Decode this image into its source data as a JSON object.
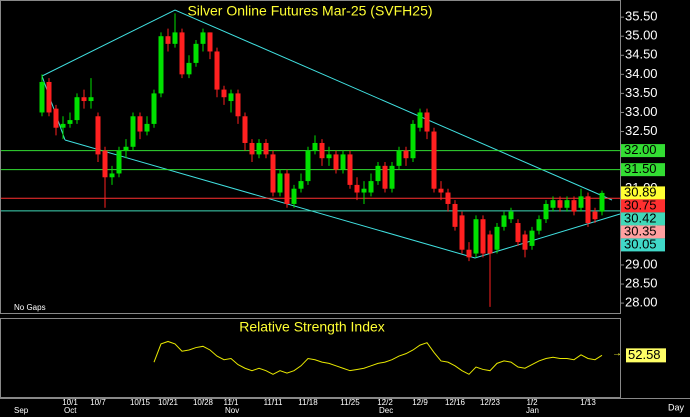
{
  "chart_data": {
    "type": "candlestick",
    "title": "Silver Online Futures Mar-25 (SVFH25)",
    "note": "No Gaps",
    "period_label": "Day",
    "up_color": "#00e000",
    "down_color": "#ff2020",
    "categories": [
      null,
      null,
      null,
      null,
      "10/1",
      null,
      null,
      null,
      "10/7",
      null,
      null,
      null,
      null,
      null,
      "10/15",
      null,
      null,
      null,
      "10/21",
      null,
      null,
      null,
      null,
      "10/28",
      null,
      null,
      null,
      "11/1",
      null,
      null,
      null,
      null,
      null,
      "11/11",
      null,
      null,
      null,
      null,
      "11/18",
      null,
      null,
      null,
      null,
      null,
      "11/25",
      null,
      null,
      null,
      null,
      "12/2",
      null,
      null,
      null,
      null,
      "12/9",
      null,
      null,
      null,
      null,
      "12/16",
      null,
      null,
      null,
      null,
      "12/23",
      null,
      null,
      null,
      null,
      null,
      "1/2",
      null,
      null,
      null,
      null,
      null,
      null,
      null,
      "1/13",
      null,
      null
    ],
    "months": [
      "Sep",
      null,
      null,
      null,
      "Oct",
      null,
      null,
      null,
      null,
      null,
      null,
      null,
      null,
      null,
      null,
      null,
      null,
      null,
      null,
      null,
      null,
      null,
      null,
      null,
      null,
      null,
      null,
      "Nov",
      null,
      null,
      null,
      null,
      null,
      null,
      null,
      null,
      null,
      null,
      null,
      null,
      null,
      null,
      null,
      null,
      null,
      null,
      null,
      null,
      null,
      "Dec",
      null,
      null,
      null,
      null,
      null,
      null,
      null,
      null,
      null,
      null,
      null,
      null,
      null,
      null,
      null,
      null,
      null,
      null,
      null,
      null,
      "Jan",
      null,
      null,
      null,
      null,
      null,
      null,
      null,
      null,
      null,
      null
    ],
    "open": [
      33.0,
      33.8,
      33.1,
      32.6,
      32.7,
      32.8,
      33.4,
      33.3,
      32.9,
      32.0,
      31.3,
      31.4,
      32.0,
      32.1,
      32.9,
      32.5,
      32.7,
      33.5,
      35.0,
      34.8,
      35.1,
      34.0,
      34.3,
      34.8,
      35.1,
      34.6,
      33.6,
      33.3,
      33.5,
      32.9,
      32.2,
      31.9,
      32.2,
      31.9,
      30.9,
      31.4,
      30.6,
      31.0,
      31.2,
      32.0,
      32.2,
      31.8,
      31.9,
      31.5,
      31.9,
      31.1,
      30.9,
      30.9,
      31.2,
      31.6,
      31.0,
      31.6,
      32.0,
      31.8,
      32.6,
      33.0,
      32.5,
      31.0,
      30.9,
      30.6,
      30.3,
      29.4,
      29.3,
      30.2,
      29.8,
      29.4,
      30.0,
      30.2,
      30.1,
      29.8,
      29.5,
      29.9,
      30.2,
      30.5,
      30.7,
      30.5,
      30.7,
      30.5,
      30.8,
      30.4,
      30.4
    ],
    "high": [
      34.0,
      33.9,
      33.2,
      32.9,
      33.0,
      33.5,
      33.6,
      33.9,
      33.0,
      32.1,
      31.6,
      32.1,
      32.3,
      33.0,
      33.0,
      32.9,
      33.6,
      35.1,
      35.2,
      35.6,
      35.2,
      34.5,
      34.9,
      35.2,
      35.1,
      34.7,
      33.7,
      33.6,
      33.6,
      33.0,
      32.3,
      32.3,
      32.3,
      32.0,
      31.5,
      31.5,
      31.1,
      31.4,
      32.1,
      32.4,
      32.3,
      32.1,
      32.0,
      32.0,
      32.0,
      31.3,
      31.2,
      31.4,
      31.7,
      31.7,
      31.7,
      32.1,
      32.1,
      32.8,
      33.1,
      33.1,
      32.6,
      31.2,
      31.0,
      30.7,
      30.4,
      29.6,
      30.3,
      30.3,
      29.9,
      30.1,
      30.4,
      30.5,
      30.2,
      29.9,
      30.0,
      30.3,
      30.7,
      30.8,
      30.8,
      30.8,
      30.8,
      31.0,
      30.9,
      30.5,
      30.95
    ],
    "low": [
      32.9,
      32.9,
      32.4,
      32.3,
      32.6,
      32.7,
      33.1,
      33.1,
      31.7,
      30.5,
      31.1,
      31.3,
      31.8,
      32.0,
      32.3,
      32.4,
      32.6,
      33.4,
      34.6,
      34.7,
      33.9,
      33.9,
      34.2,
      34.6,
      34.4,
      33.4,
      33.2,
      33.0,
      32.7,
      32.0,
      31.7,
      31.8,
      31.8,
      30.8,
      30.8,
      30.5,
      30.5,
      30.9,
      31.1,
      31.9,
      31.6,
      31.6,
      31.4,
      31.4,
      31.0,
      30.7,
      30.6,
      30.8,
      31.1,
      30.9,
      30.9,
      31.5,
      31.6,
      31.7,
      32.5,
      32.3,
      30.9,
      30.7,
      30.4,
      29.9,
      29.3,
      29.1,
      29.2,
      29.2,
      27.9,
      29.3,
      29.9,
      30.1,
      29.5,
      29.2,
      29.4,
      29.8,
      30.1,
      30.4,
      30.4,
      30.4,
      30.3,
      30.4,
      30.0,
      30.1,
      30.3
    ],
    "close": [
      33.8,
      33.0,
      32.6,
      32.7,
      32.8,
      33.4,
      33.3,
      33.4,
      31.9,
      31.3,
      31.4,
      32.0,
      32.1,
      32.9,
      32.5,
      32.7,
      33.5,
      35.0,
      34.8,
      35.1,
      34.0,
      34.3,
      34.8,
      35.1,
      34.6,
      33.6,
      33.4,
      33.5,
      32.9,
      32.2,
      31.9,
      32.2,
      31.9,
      30.9,
      31.4,
      30.6,
      31.0,
      31.2,
      32.0,
      32.2,
      31.8,
      31.9,
      31.5,
      31.9,
      31.1,
      30.9,
      31.0,
      31.2,
      31.6,
      31.0,
      31.6,
      32.0,
      31.8,
      32.7,
      33.0,
      32.5,
      31.0,
      30.9,
      30.6,
      30.0,
      29.4,
      29.2,
      30.2,
      29.3,
      29.3,
      30.0,
      30.3,
      30.4,
      29.6,
      29.4,
      29.9,
      30.2,
      30.6,
      30.7,
      30.5,
      30.7,
      30.4,
      30.8,
      30.1,
      30.2,
      30.89
    ],
    "ylim": [
      27.74,
      35.95
    ],
    "yticks": [
      {
        "value": 28,
        "label": "28.00"
      },
      {
        "value": 28.5,
        "label": "28.50"
      },
      {
        "value": 29,
        "label": "29.00"
      },
      {
        "value": 29.5,
        "label": "29.50"
      },
      {
        "value": 30,
        "label": "30.00"
      },
      {
        "value": 30.5,
        "label": "30.50"
      },
      {
        "value": 31,
        "label": "31.00"
      },
      {
        "value": 31.5,
        "label": "31.50"
      },
      {
        "value": 32,
        "label": "32.00"
      },
      {
        "value": 32.5,
        "label": "32.50"
      },
      {
        "value": 33,
        "label": "33.00"
      },
      {
        "value": 33.5,
        "label": "33.50"
      },
      {
        "value": 34,
        "label": "34.00"
      },
      {
        "value": 34.5,
        "label": "34.50"
      },
      {
        "value": 35,
        "label": "35.00"
      },
      {
        "value": 35.5,
        "label": "35.50"
      }
    ],
    "price_labels": [
      {
        "value": 32,
        "label": "32.00",
        "color": "#33dd33",
        "line": true
      },
      {
        "value": 31.5,
        "label": "31.50",
        "color": "#33dd33",
        "line": true
      },
      {
        "value": 30.89,
        "label": "30.89",
        "color": "#ffff33",
        "line": false
      },
      {
        "value": 30.75,
        "label": "30.75",
        "color": "#ff3030",
        "line": true
      },
      {
        "value": 30.42,
        "label": "30.42",
        "color": "#40d8b8",
        "line": true
      },
      {
        "value": 30.35,
        "label": "30.35",
        "color": "#ffa0a0",
        "line": false
      },
      {
        "value": 30.05,
        "label": "30.05",
        "color": "#40d8c8",
        "line": false
      }
    ],
    "rsi": {
      "title": "Relative Strength Index",
      "color": "#e8e800",
      "ylim": [
        20,
        80
      ],
      "values": [
        null,
        null,
        null,
        null,
        null,
        null,
        null,
        null,
        null,
        null,
        null,
        null,
        null,
        null,
        null,
        null,
        47,
        62,
        64,
        62,
        56,
        57,
        59,
        60,
        57,
        52,
        49,
        50,
        45,
        42,
        40,
        42,
        40,
        37,
        40,
        38,
        40,
        44,
        50,
        49,
        47,
        46,
        44,
        42,
        40,
        41,
        42,
        44,
        46,
        47,
        49,
        52,
        54,
        57,
        61,
        63,
        55,
        48,
        47,
        44,
        40,
        37,
        43,
        41,
        40,
        46,
        48,
        47,
        43,
        42,
        45,
        48,
        50,
        51,
        50,
        50,
        49,
        53,
        50,
        49,
        52.58
      ]
    }
  }
}
